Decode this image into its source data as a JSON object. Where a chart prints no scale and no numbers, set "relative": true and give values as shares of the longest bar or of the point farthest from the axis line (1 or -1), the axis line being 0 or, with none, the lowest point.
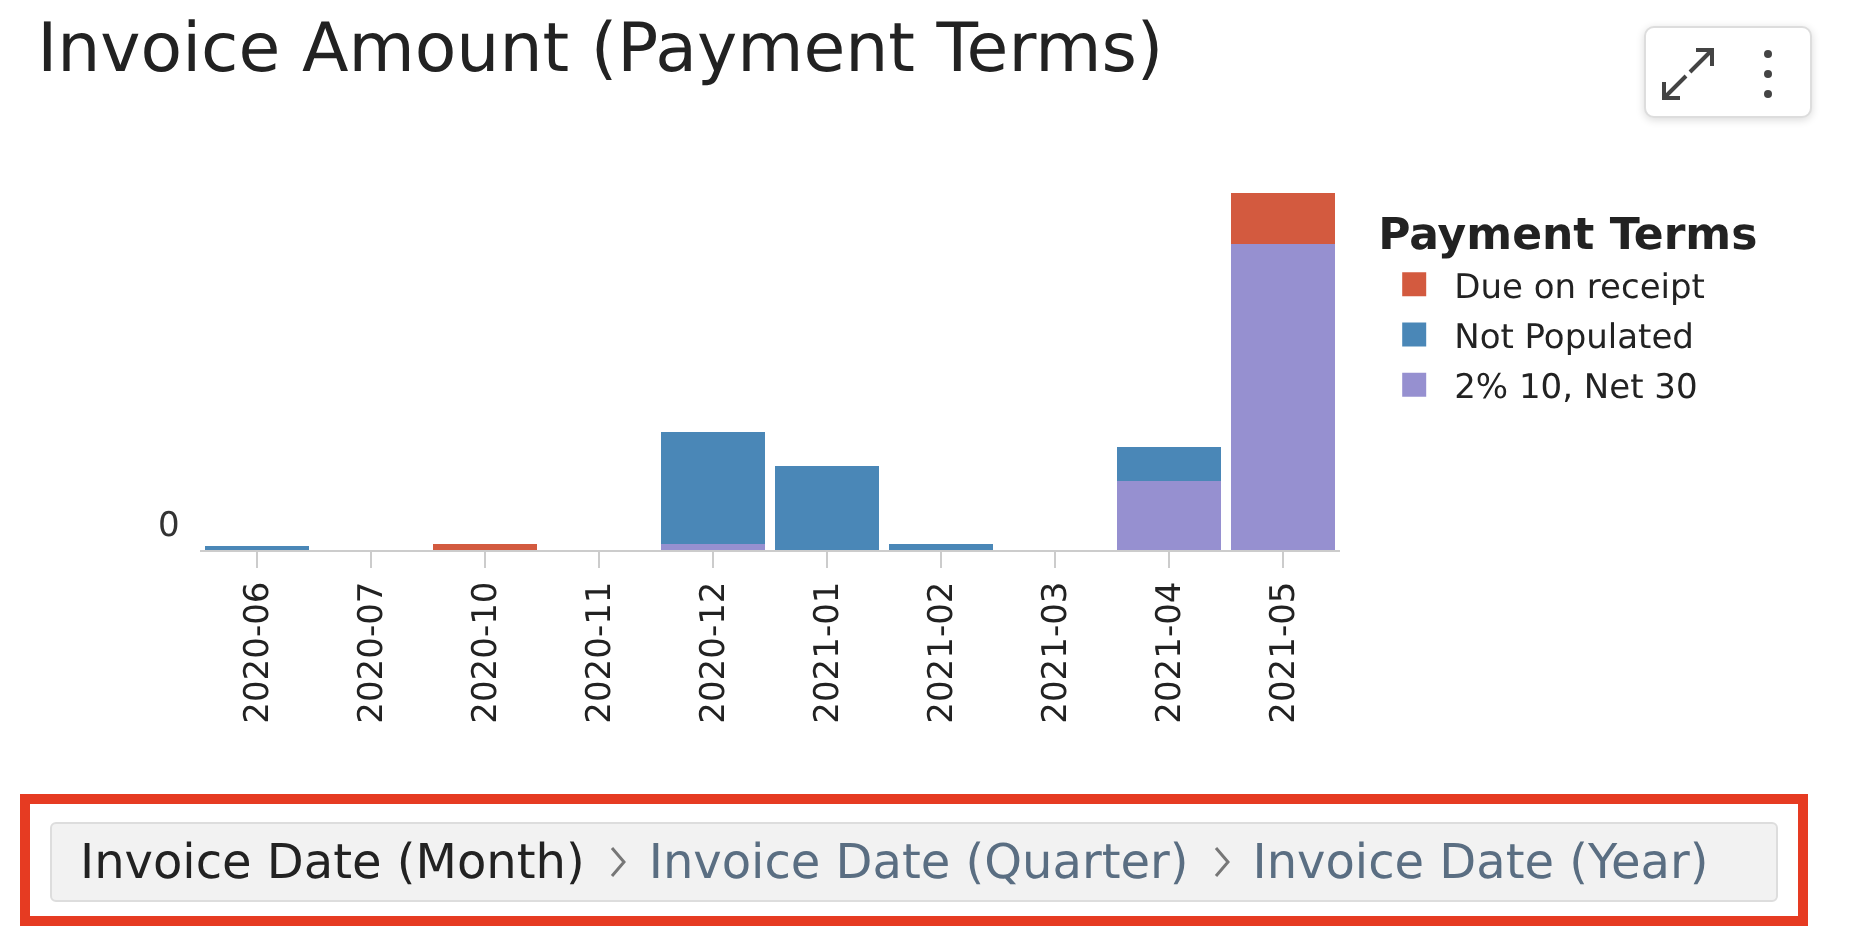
{
  "chart_data": {
    "type": "bar",
    "title": "Invoice Amount (Payment Terms)",
    "legend_title": "Payment Terms",
    "stacked": true,
    "relative": true,
    "legend": "top right",
    "grid": false,
    "categories": [
      "2020-06",
      "2020-07",
      "2020-10",
      "2020-11",
      "2020-12",
      "2021-01",
      "2021-02",
      "2021-03",
      "2021-04",
      "2021-05"
    ],
    "series": [
      {
        "name": "2% 10, Net 30",
        "color": "#9690d0",
        "values": [
          0,
          0,
          0,
          0,
          0.017,
          0,
          0,
          0,
          0.193,
          0.857
        ]
      },
      {
        "name": "Not Populated",
        "color": "#4a87b7",
        "values": [
          0.006,
          0,
          0,
          0,
          0.315,
          0.237,
          0.017,
          0,
          0.096,
          0
        ]
      },
      {
        "name": "Due on receipt",
        "color": "#d35a3f",
        "values": [
          0,
          0,
          0.017,
          0,
          0,
          0,
          0,
          0,
          0,
          0.143
        ]
      }
    ],
    "annotations": [
      "0",
      "Invoice Date (Month)",
      "Invoice Date (Quarter)",
      "Invoice Date (Year)"
    ]
  }
}
